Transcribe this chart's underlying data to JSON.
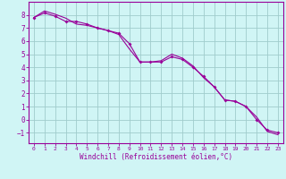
{
  "xlabel": "Windchill (Refroidissement éolien,°C)",
  "xlim": [
    -0.5,
    23.5
  ],
  "ylim": [
    -1.8,
    9.0
  ],
  "yticks": [
    -1,
    0,
    1,
    2,
    3,
    4,
    5,
    6,
    7,
    8
  ],
  "xticks": [
    0,
    1,
    2,
    3,
    4,
    5,
    6,
    7,
    8,
    9,
    10,
    11,
    12,
    13,
    14,
    15,
    16,
    17,
    18,
    19,
    20,
    21,
    22,
    23
  ],
  "bg_color": "#d0f5f5",
  "grid_color": "#a0cccc",
  "line_color": "#990099",
  "line1_x": [
    0,
    1,
    2,
    3,
    4,
    5,
    6,
    7,
    8,
    9,
    10,
    11,
    12,
    13,
    14,
    15,
    16,
    17,
    18,
    19,
    20,
    21,
    22,
    23
  ],
  "line1_y": [
    7.8,
    8.15,
    7.9,
    7.5,
    7.5,
    7.3,
    7.0,
    6.8,
    6.6,
    5.8,
    4.4,
    4.4,
    4.4,
    4.8,
    4.6,
    4.0,
    3.3,
    2.5,
    1.5,
    1.4,
    1.0,
    0.0,
    -0.8,
    -1.0
  ],
  "line2_x": [
    0,
    1,
    2,
    3,
    4,
    5,
    6,
    7,
    8,
    9,
    10,
    11,
    12,
    13,
    14,
    15,
    16,
    17,
    18,
    19,
    20,
    21,
    22,
    23
  ],
  "line2_y": [
    7.8,
    8.3,
    8.05,
    7.75,
    7.3,
    7.2,
    7.0,
    6.8,
    6.5,
    5.4,
    4.4,
    4.4,
    4.5,
    5.0,
    4.7,
    4.1,
    3.2,
    2.5,
    1.5,
    1.4,
    1.0,
    0.2,
    -0.9,
    -1.15
  ]
}
